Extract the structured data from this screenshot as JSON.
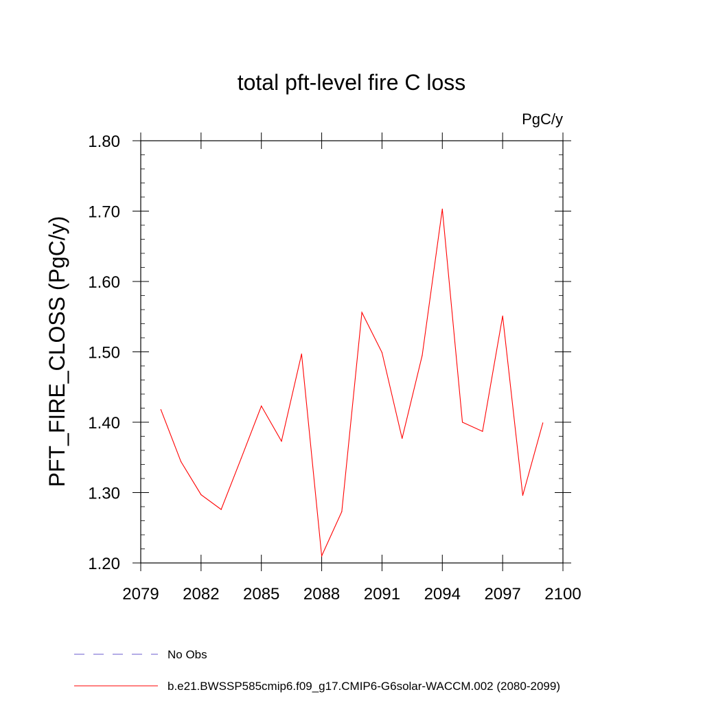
{
  "chart_data": {
    "type": "line",
    "title": "total pft-level fire C loss",
    "units": "PgC/y",
    "xlabel": "",
    "ylabel": "PFT_FIRE_CLOSS  (PgC/y)",
    "xlim": [
      2079,
      2100
    ],
    "ylim": [
      1.2,
      1.8
    ],
    "x_ticks": [
      2079,
      2082,
      2085,
      2088,
      2091,
      2094,
      2097,
      2100
    ],
    "x_tick_labels": [
      "2079",
      "2082",
      "2085",
      "2088",
      "2091",
      "2094",
      "2097",
      "2100"
    ],
    "y_ticks": [
      1.2,
      1.3,
      1.4,
      1.5,
      1.6,
      1.7,
      1.8
    ],
    "y_tick_labels": [
      "1.20",
      "1.30",
      "1.40",
      "1.50",
      "1.60",
      "1.70",
      "1.80"
    ],
    "grid": false,
    "legend_position": "bottom",
    "legend": [
      {
        "label": "No Obs",
        "color": "#6a5acd",
        "style": "dashed"
      },
      {
        "label": "b.e21.BWSSP585cmip6.f09_g17.CMIP6-G6solar-WACCM.002 (2080-2099)",
        "color": "#ff0000",
        "style": "solid"
      }
    ],
    "series": [
      {
        "color": "#ff0000",
        "x": [
          2080,
          2081,
          2082,
          2083,
          2084,
          2085,
          2086,
          2087,
          2088,
          2089,
          2090,
          2091,
          2092,
          2093,
          2094,
          2095,
          2096,
          2097,
          2098,
          2099
        ],
        "values": [
          1.418,
          1.344,
          1.297,
          1.276,
          1.349,
          1.423,
          1.373,
          1.497,
          1.21,
          1.273,
          1.556,
          1.499,
          1.377,
          1.495,
          1.703,
          1.4,
          1.387,
          1.551,
          1.296,
          1.399
        ]
      }
    ]
  }
}
